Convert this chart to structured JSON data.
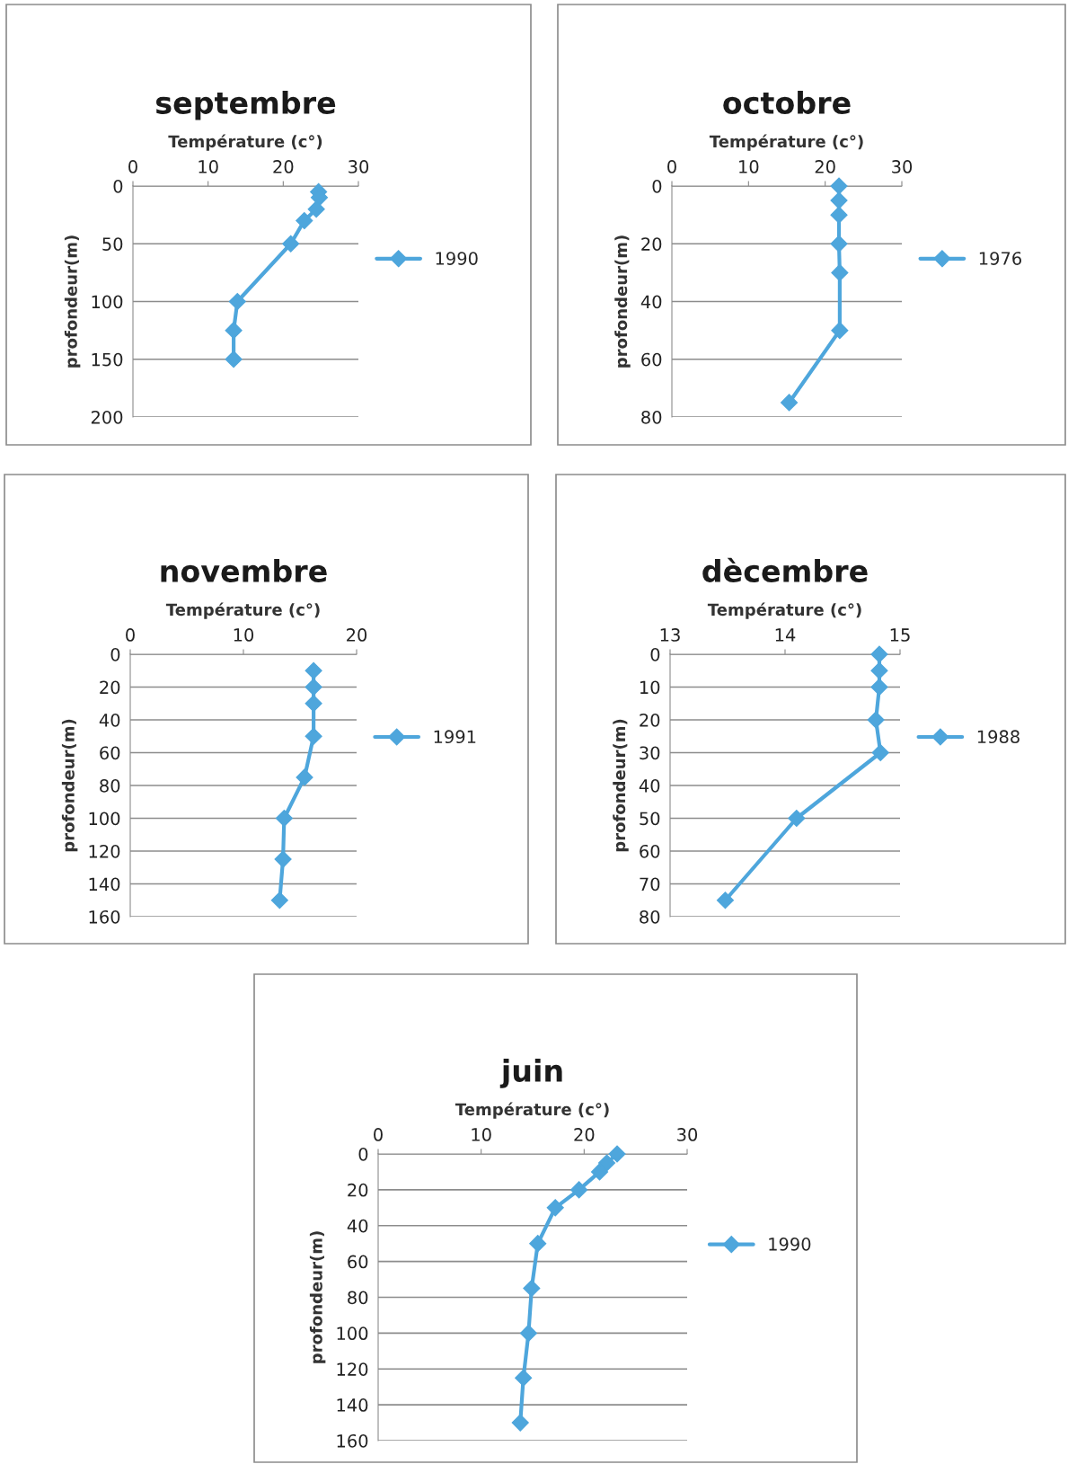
{
  "chart_data": [
    {
      "type": "line",
      "title": "septembre",
      "xlabel": "Température (c°)",
      "ylabel": "profondeur(m)",
      "xlim": [
        0,
        30
      ],
      "xticks": [
        0,
        10,
        20,
        30
      ],
      "ylim": [
        200,
        0
      ],
      "yticks": [
        0,
        50,
        100,
        150,
        200
      ],
      "grid": "y",
      "legend": "right",
      "marker": "diamond",
      "line_style": "solid",
      "series": [
        {
          "name": "1990",
          "color": "#4ea6dc",
          "x": [
            24.7,
            24.8,
            24.4,
            22.8,
            21,
            13.9,
            13.4,
            13.4
          ],
          "values": [
            5,
            10,
            20,
            30,
            50,
            100,
            125,
            150
          ]
        }
      ]
    },
    {
      "type": "line",
      "title": "octobre",
      "xlabel": "Température (c°)",
      "ylabel": "profondeur(m)",
      "xlim": [
        0,
        30
      ],
      "xticks": [
        0,
        10,
        20,
        30
      ],
      "ylim": [
        80,
        0
      ],
      "yticks": [
        0,
        20,
        40,
        60,
        80
      ],
      "grid": "y",
      "legend": "right",
      "marker": "diamond",
      "line_style": "solid",
      "series": [
        {
          "name": "1976",
          "color": "#4ea6dc",
          "x": [
            21.8,
            21.8,
            21.8,
            21.8,
            21.9,
            21.9,
            15.3
          ],
          "values": [
            0,
            5,
            10,
            20,
            30,
            50,
            75
          ]
        }
      ]
    },
    {
      "type": "line",
      "title": "novembre",
      "xlabel": "Température (c°)",
      "ylabel": "profondeur(m)",
      "xlim": [
        0,
        20
      ],
      "xticks": [
        0,
        10,
        20
      ],
      "ylim": [
        160,
        0
      ],
      "yticks": [
        0,
        20,
        40,
        60,
        80,
        100,
        120,
        140,
        160
      ],
      "grid": "y",
      "legend": "right",
      "marker": "diamond",
      "line_style": "solid",
      "series": [
        {
          "name": "1991",
          "color": "#4ea6dc",
          "x": [
            16.2,
            16.2,
            16.2,
            16.2,
            15.4,
            13.6,
            13.5,
            13.2
          ],
          "values": [
            10,
            20,
            30,
            50,
            75,
            100,
            125,
            150
          ]
        }
      ]
    },
    {
      "type": "line",
      "title": "dècembre",
      "xlabel": "Température (c°)",
      "ylabel": "profondeur(m)",
      "xlim": [
        13,
        15
      ],
      "xticks": [
        13,
        14,
        15
      ],
      "ylim": [
        80,
        0
      ],
      "yticks": [
        0,
        10,
        20,
        30,
        40,
        50,
        60,
        70,
        80
      ],
      "grid": "y",
      "legend": "right",
      "marker": "diamond",
      "line_style": "solid",
      "series": [
        {
          "name": "1988",
          "color": "#4ea6dc",
          "x": [
            14.82,
            14.82,
            14.82,
            14.79,
            14.83,
            14.1,
            13.48
          ],
          "values": [
            0,
            5,
            10,
            20,
            30,
            50,
            75
          ]
        }
      ]
    },
    {
      "type": "line",
      "title": "juin",
      "xlabel": "Température (c°)",
      "ylabel": "profondeur(m)",
      "xlim": [
        0,
        30
      ],
      "xticks": [
        0,
        10,
        20,
        30
      ],
      "ylim": [
        160,
        0
      ],
      "yticks": [
        0,
        20,
        40,
        60,
        80,
        100,
        120,
        140,
        160
      ],
      "grid": "y",
      "legend": "right",
      "marker": "diamond",
      "line_style": "solid",
      "series": [
        {
          "name": "1990",
          "color": "#4ea6dc",
          "x": [
            23.2,
            22.2,
            21.5,
            19.5,
            17.2,
            15.5,
            14.9,
            14.6,
            14.1,
            13.8
          ],
          "values": [
            0,
            5,
            10,
            20,
            30,
            50,
            75,
            100,
            125,
            150
          ]
        }
      ]
    }
  ]
}
